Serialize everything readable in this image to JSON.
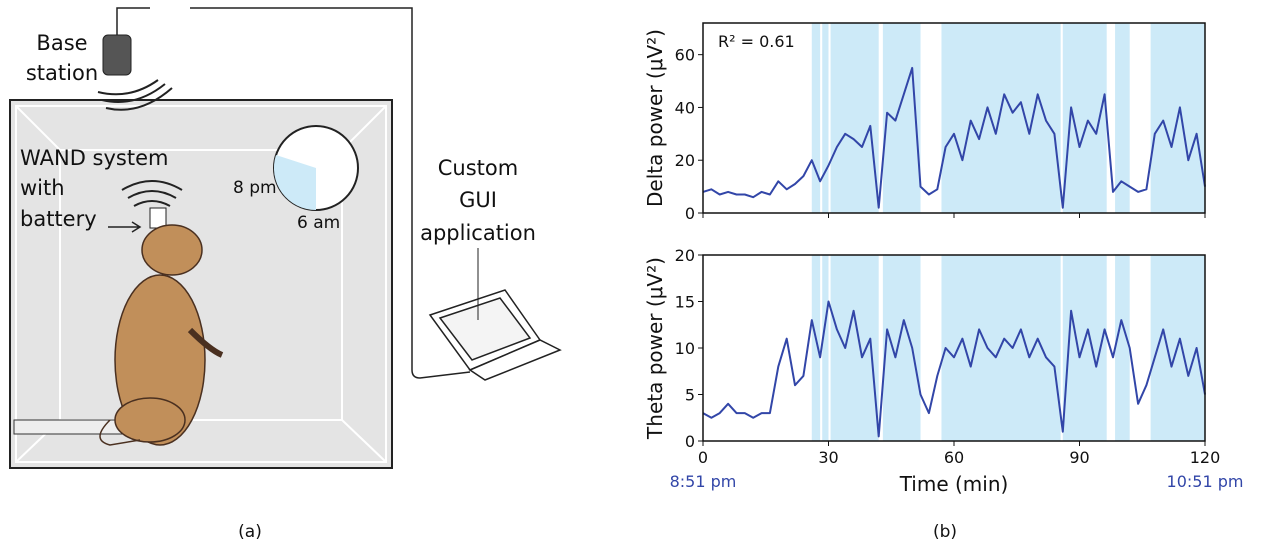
{
  "diagram": {
    "base_station": [
      "Base",
      "station"
    ],
    "wand": [
      "WAND system",
      "with",
      "battery"
    ],
    "gui": [
      "Custom",
      "GUI",
      "application"
    ],
    "clock_start": "8 pm",
    "clock_end": "6 am"
  },
  "captions": [
    "(a)",
    "(b)"
  ],
  "chart_data": [
    {
      "type": "line",
      "ylabel": "Delta power (μV²)",
      "annotation": "R² = 0.61",
      "x": [
        0,
        2,
        4,
        6,
        8,
        10,
        12,
        14,
        16,
        18,
        20,
        22,
        24,
        26,
        28,
        30,
        32,
        34,
        36,
        38,
        40,
        42,
        44,
        46,
        48,
        50,
        52,
        54,
        56,
        58,
        60,
        62,
        64,
        66,
        68,
        70,
        72,
        74,
        76,
        78,
        80,
        82,
        84,
        86,
        88,
        90,
        92,
        94,
        96,
        98,
        100,
        102,
        104,
        106,
        108,
        110,
        112,
        114,
        116,
        118,
        120
      ],
      "series": [
        {
          "color": "#3246a8",
          "values": [
            8,
            9,
            7,
            8,
            7,
            7,
            6,
            8,
            7,
            12,
            9,
            11,
            14,
            20,
            12,
            18,
            25,
            30,
            28,
            25,
            33,
            2,
            38,
            35,
            45,
            55,
            10,
            7,
            9,
            25,
            30,
            20,
            35,
            28,
            40,
            30,
            45,
            38,
            42,
            30,
            45,
            35,
            30,
            2,
            40,
            25,
            35,
            30,
            45,
            8,
            12,
            10,
            8,
            9,
            30,
            35,
            25,
            40,
            20,
            30,
            10
          ]
        }
      ],
      "shaded_regions": [
        [
          26,
          28
        ],
        [
          28.5,
          30
        ],
        [
          30.5,
          42
        ],
        [
          43,
          52
        ],
        [
          57,
          85.5
        ],
        [
          86,
          96.5
        ],
        [
          98.5,
          102
        ],
        [
          107,
          120
        ]
      ],
      "shade_color": "#cdeaf8",
      "xlim": [
        0,
        120
      ],
      "xticks": [
        0,
        30,
        60,
        90,
        120
      ],
      "show_xtick_labels": false,
      "ylim": [
        0,
        72
      ],
      "yticks": [
        0,
        20,
        40,
        60
      ]
    },
    {
      "type": "line",
      "ylabel": "Theta power (μV²)",
      "xlabel": "Time (min)",
      "x": [
        0,
        2,
        4,
        6,
        8,
        10,
        12,
        14,
        16,
        18,
        20,
        22,
        24,
        26,
        28,
        30,
        32,
        34,
        36,
        38,
        40,
        42,
        44,
        46,
        48,
        50,
        52,
        54,
        56,
        58,
        60,
        62,
        64,
        66,
        68,
        70,
        72,
        74,
        76,
        78,
        80,
        82,
        84,
        86,
        88,
        90,
        92,
        94,
        96,
        98,
        100,
        102,
        104,
        106,
        108,
        110,
        112,
        114,
        116,
        118,
        120
      ],
      "series": [
        {
          "color": "#3246a8",
          "values": [
            3,
            2.5,
            3,
            4,
            3,
            3,
            2.5,
            3,
            3,
            8,
            11,
            6,
            7,
            13,
            9,
            15,
            12,
            10,
            14,
            9,
            11,
            0.5,
            12,
            9,
            13,
            10,
            5,
            3,
            7,
            10,
            9,
            11,
            8,
            12,
            10,
            9,
            11,
            10,
            12,
            9,
            11,
            9,
            8,
            1,
            14,
            9,
            12,
            8,
            12,
            9,
            13,
            10,
            4,
            6,
            9,
            12,
            8,
            11,
            7,
            10,
            5
          ]
        }
      ],
      "shaded_regions": [
        [
          26,
          28
        ],
        [
          28.5,
          30
        ],
        [
          30.5,
          42
        ],
        [
          43,
          52
        ],
        [
          57,
          85.5
        ],
        [
          86,
          96.5
        ],
        [
          98.5,
          102
        ],
        [
          107,
          120
        ]
      ],
      "shade_color": "#cdeaf8",
      "xlim": [
        0,
        120
      ],
      "xticks": [
        0,
        30,
        60,
        90,
        120
      ],
      "show_xtick_labels": true,
      "time_labels": [
        {
          "value": 0,
          "label": "8:51 pm"
        },
        {
          "value": 120,
          "label": "10:51 pm"
        }
      ],
      "ylim": [
        0,
        20
      ],
      "yticks": [
        0,
        5,
        10,
        15,
        20
      ]
    }
  ]
}
